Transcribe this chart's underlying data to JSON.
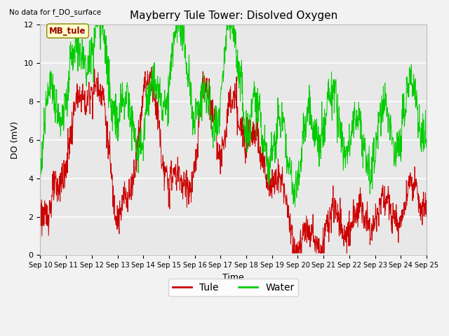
{
  "title": "Mayberry Tule Tower: Disolved Oxygen",
  "top_left_note": "No data for f_DO_surface",
  "ylabel": "DO (mV)",
  "xlabel": "Time",
  "ylim": [
    0,
    12
  ],
  "yticks": [
    0,
    2,
    4,
    6,
    8,
    10,
    12
  ],
  "xtick_labels": [
    "Sep 10",
    "Sep 11",
    "Sep 12",
    "Sep 13",
    "Sep 14",
    "Sep 15",
    "Sep 16",
    "Sep 17",
    "Sep 18",
    "Sep 19",
    "Sep 20",
    "Sep 21",
    "Sep 22",
    "Sep 23",
    "Sep 24",
    "Sep 25"
  ],
  "tule_color": "#cc0000",
  "water_color": "#00cc00",
  "plot_bg_color": "#e8e8e8",
  "fig_bg_color": "#f2f2f2",
  "legend_tule": "Tule",
  "legend_water": "Water",
  "annotation_box": "MB_tule",
  "grid_color": "#ffffff",
  "annotation_color": "#990000",
  "annotation_bg": "#ffffcc",
  "annotation_edge": "#888800"
}
